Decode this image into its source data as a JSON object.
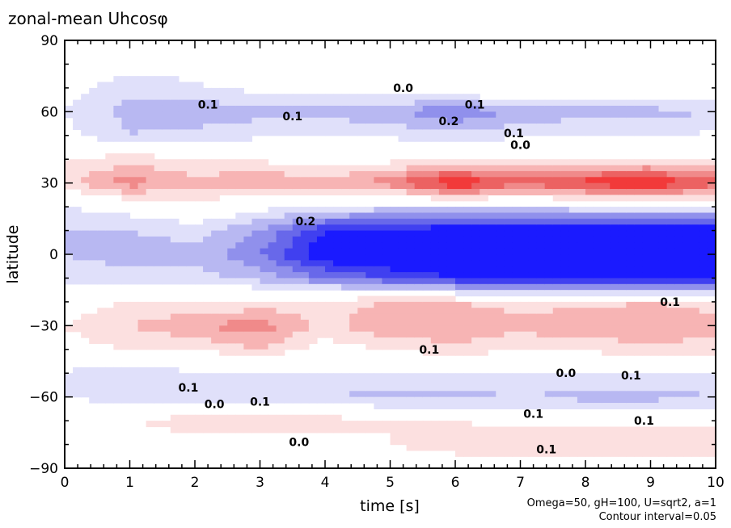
{
  "chart_data": {
    "type": "heatmap",
    "title": "zonal-mean Uhcosφ",
    "xlabel": "time [s]",
    "ylabel": "latitude",
    "xlim": [
      0,
      10
    ],
    "ylim": [
      -90,
      90
    ],
    "xticks": [
      "0",
      "1",
      "2",
      "3",
      "4",
      "5",
      "6",
      "7",
      "8",
      "9",
      "10"
    ],
    "yticks": [
      "90",
      "60",
      "30",
      "0",
      "−30",
      "−60",
      "−90"
    ],
    "ytick_values": [
      90,
      60,
      30,
      0,
      -30,
      -60,
      -90
    ],
    "annotation_params": "Omega=50, gH=100, U=sqrt2, a=1",
    "annotation_interval": "Contour interval=0.05",
    "contour_interval": 0.05,
    "grid_time": [
      0,
      1,
      2,
      3,
      4,
      5,
      6,
      7,
      8,
      9,
      10
    ],
    "grid_lat": [
      90,
      80,
      70,
      60,
      50,
      40,
      30,
      20,
      10,
      0,
      -10,
      -20,
      -30,
      -40,
      -50,
      -60,
      -70,
      -80,
      -90
    ],
    "values": [
      [
        0,
        0,
        0,
        0,
        0,
        0,
        0,
        0,
        0,
        0,
        0
      ],
      [
        0,
        -0.03,
        -0.02,
        0,
        0,
        0.02,
        0.03,
        0.05,
        0.05,
        0.05,
        0.03
      ],
      [
        -0.03,
        -0.08,
        -0.06,
        -0.03,
        -0.03,
        0,
        0.02,
        0.03,
        0.04,
        0.03,
        0.02
      ],
      [
        -0.05,
        -0.12,
        -0.14,
        -0.12,
        -0.12,
        -0.14,
        -0.2,
        -0.14,
        -0.12,
        -0.12,
        -0.1
      ],
      [
        -0.03,
        -0.1,
        -0.08,
        -0.06,
        -0.05,
        -0.06,
        -0.08,
        -0.06,
        -0.05,
        -0.05,
        -0.04
      ],
      [
        0.05,
        0.08,
        0.05,
        0.04,
        0.02,
        0.03,
        0.05,
        0.05,
        0.05,
        0.05,
        0.04
      ],
      [
        0.08,
        0.18,
        0.12,
        0.15,
        0.12,
        0.18,
        0.32,
        0.22,
        0.28,
        0.32,
        0.22
      ],
      [
        -0.05,
        -0.02,
        0.02,
        -0.03,
        -0.05,
        -0.08,
        -0.08,
        -0.08,
        -0.06,
        -0.06,
        -0.05
      ],
      [
        -0.1,
        -0.1,
        -0.08,
        -0.15,
        -0.3,
        -0.3,
        -0.35,
        -0.35,
        -0.35,
        -0.35,
        -0.35
      ],
      [
        -0.1,
        -0.12,
        -0.12,
        -0.2,
        -0.35,
        -0.38,
        -0.4,
        -0.4,
        -0.4,
        -0.42,
        -0.42
      ],
      [
        -0.08,
        -0.08,
        -0.08,
        -0.12,
        -0.2,
        -0.25,
        -0.3,
        -0.3,
        -0.32,
        -0.32,
        -0.32
      ],
      [
        0.02,
        0.05,
        0.05,
        0.06,
        0.08,
        0.1,
        0.1,
        0.08,
        0.08,
        0.1,
        0.08
      ],
      [
        0.05,
        0.1,
        0.15,
        0.18,
        0.08,
        0.15,
        0.15,
        0.12,
        0.15,
        0.15,
        0.12
      ],
      [
        0.03,
        0.05,
        0.05,
        0.1,
        0.02,
        0.05,
        0.08,
        0.05,
        0.06,
        0.08,
        0.08
      ],
      [
        -0.06,
        -0.08,
        -0.06,
        -0.06,
        -0.05,
        -0.05,
        -0.06,
        -0.05,
        -0.06,
        -0.06,
        -0.06
      ],
      [
        -0.05,
        -0.08,
        -0.1,
        -0.1,
        -0.1,
        -0.12,
        -0.12,
        -0.1,
        -0.12,
        -0.12,
        -0.1
      ],
      [
        0.03,
        0.05,
        0.08,
        0.08,
        0.08,
        0.05,
        0.05,
        0.03,
        0.03,
        0.03,
        0.03
      ],
      [
        0,
        0,
        0.03,
        0.03,
        0.03,
        0.05,
        0.08,
        0.1,
        0.1,
        0.1,
        0.1
      ],
      [
        0,
        0,
        0,
        0,
        0,
        0,
        0,
        0,
        0,
        0,
        0
      ]
    ],
    "contour_labels": [
      {
        "text": "0.0",
        "t": 5.2,
        "lat": 70
      },
      {
        "text": "0.1",
        "t": 6.3,
        "lat": 63
      },
      {
        "text": "0.1",
        "t": 2.2,
        "lat": 63
      },
      {
        "text": "0.1",
        "t": 3.5,
        "lat": 58
      },
      {
        "text": "0.2",
        "t": 5.9,
        "lat": 56
      },
      {
        "text": "0.1",
        "t": 6.9,
        "lat": 51
      },
      {
        "text": "0.0",
        "t": 7.0,
        "lat": 46
      },
      {
        "text": "0.2",
        "t": 3.7,
        "lat": 14
      },
      {
        "text": "0.1",
        "t": 9.3,
        "lat": -20
      },
      {
        "text": "0.1",
        "t": 5.6,
        "lat": -40
      },
      {
        "text": "0.1",
        "t": 1.9,
        "lat": -56
      },
      {
        "text": "0.0",
        "t": 2.3,
        "lat": -63
      },
      {
        "text": "0.1",
        "t": 3.0,
        "lat": -62
      },
      {
        "text": "0.0",
        "t": 7.7,
        "lat": -50
      },
      {
        "text": "0.1",
        "t": 8.7,
        "lat": -51
      },
      {
        "text": "0.1",
        "t": 7.2,
        "lat": -67
      },
      {
        "text": "0.1",
        "t": 8.9,
        "lat": -70
      },
      {
        "text": "0.0",
        "t": 3.6,
        "lat": -79
      },
      {
        "text": "0.1",
        "t": 7.4,
        "lat": -82
      }
    ]
  },
  "colors": {
    "positive": [
      "#ffffff",
      "#fce0e0",
      "#f7b4b4",
      "#f08a8a",
      "#ec6262",
      "#f23a3a",
      "#ff1010"
    ],
    "negative": [
      "#ffffff",
      "#e0e0fa",
      "#b8b8f2",
      "#9090ec",
      "#6868ea",
      "#4040f0",
      "#1a1aff"
    ]
  }
}
